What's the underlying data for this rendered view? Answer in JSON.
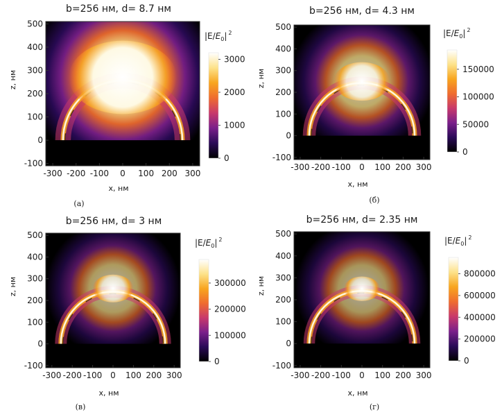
{
  "figure": {
    "colormap": [
      "#000000",
      "#2a0a57",
      "#7a1f8a",
      "#c8396b",
      "#ef6c2f",
      "#f8a51f",
      "#fde28a",
      "#ffffff"
    ],
    "substrate_color": "#000000"
  },
  "chart_data": [
    {
      "type": "heatmap",
      "title": "b=256 нм, d= 8.7 нм",
      "caption": "(а)",
      "xlabel": "x, нм",
      "ylabel": "z, нм",
      "xlim": [
        -330,
        330
      ],
      "ylim": [
        -110,
        510
      ],
      "xticks": [
        -300,
        -200,
        -100,
        0,
        100,
        200,
        300
      ],
      "xtick_labels": [
        "-300",
        "-200",
        "-100",
        "0",
        "100",
        "200",
        "300"
      ],
      "yticks": [
        -100,
        0,
        100,
        200,
        300,
        400,
        500
      ],
      "ytick_labels": [
        "-100",
        "0",
        "100",
        "200",
        "300",
        "400",
        "500"
      ],
      "colorbar": {
        "label_prefix": "|E/",
        "label_symbol": "E",
        "label_sub": "0",
        "label_suffix": "|",
        "label_sup": "2",
        "range": [
          0,
          3200
        ],
        "ticks": [
          0,
          1000,
          2000,
          3000
        ],
        "tick_labels": [
          "0",
          "1000",
          "2000",
          "3000"
        ]
      },
      "field": {
        "core_radius": 185,
        "core_center_z": 270,
        "ring_radius": 256,
        "glow": 0.95,
        "halo": 0.85
      }
    },
    {
      "type": "heatmap",
      "title": "b=256 нм, d= 4.3 нм",
      "caption": "(б)",
      "xlabel": "x, нм",
      "ylabel": "z, нм",
      "xlim": [
        -330,
        330
      ],
      "ylim": [
        -110,
        510
      ],
      "xticks": [
        -300,
        -200,
        -100,
        0,
        100,
        200,
        300
      ],
      "xtick_labels": [
        "-300",
        "-200",
        "-100",
        "0",
        "100",
        "200",
        "300"
      ],
      "yticks": [
        -100,
        0,
        100,
        200,
        300,
        400,
        500
      ],
      "ytick_labels": [
        "-100",
        "0",
        "100",
        "200",
        "300",
        "400",
        "500"
      ],
      "colorbar": {
        "label_prefix": "|E/",
        "label_symbol": "E",
        "label_sub": "0",
        "label_suffix": "|",
        "label_sup": "2",
        "range": [
          0,
          185000
        ],
        "ticks": [
          0,
          50000,
          100000,
          150000
        ],
        "tick_labels": [
          "0",
          "50000",
          "100000",
          "150000"
        ]
      },
      "field": {
        "core_radius": 110,
        "core_center_z": 250,
        "ring_radius": 256,
        "glow": 0.8,
        "halo": 0.45
      }
    },
    {
      "type": "heatmap",
      "title": "b=256 нм, d= 3 нм",
      "caption": "(в)",
      "xlabel": "x, нм",
      "ylabel": "z, нм",
      "xlim": [
        -330,
        330
      ],
      "ylim": [
        -110,
        510
      ],
      "xticks": [
        -300,
        -200,
        -100,
        0,
        100,
        200,
        300
      ],
      "xtick_labels": [
        "-300",
        "-200",
        "-100",
        "0",
        "100",
        "200",
        "300"
      ],
      "yticks": [
        -100,
        0,
        100,
        200,
        300,
        400,
        500
      ],
      "ytick_labels": [
        "-100",
        "0",
        "100",
        "200",
        "300",
        "400",
        "500"
      ],
      "colorbar": {
        "label_prefix": "|E/",
        "label_symbol": "E",
        "label_sub": "0",
        "label_suffix": "|",
        "label_sup": "2",
        "range": [
          0,
          390000
        ],
        "ticks": [
          0,
          100000,
          200000,
          300000
        ],
        "tick_labels": [
          "0",
          "100000",
          "200000",
          "300000"
        ]
      },
      "field": {
        "core_radius": 80,
        "core_center_z": 255,
        "ring_radius": 256,
        "glow": 0.7,
        "halo": 0.3
      }
    },
    {
      "type": "heatmap",
      "title": "b=256 нм, d= 2.35 нм",
      "caption": "(г)",
      "xlabel": "x, нм",
      "ylabel": "z, нм",
      "xlim": [
        -330,
        330
      ],
      "ylim": [
        -110,
        510
      ],
      "xticks": [
        -300,
        -200,
        -100,
        0,
        100,
        200,
        300
      ],
      "xtick_labels": [
        "-300",
        "-200",
        "-100",
        "0",
        "100",
        "200",
        "300"
      ],
      "yticks": [
        -100,
        0,
        100,
        200,
        300,
        400,
        500
      ],
      "ytick_labels": [
        "-100",
        "0",
        "100",
        "200",
        "300",
        "400",
        "500"
      ],
      "colorbar": {
        "label_prefix": "|E/",
        "label_symbol": "E",
        "label_sub": "0",
        "label_suffix": "|",
        "label_sup": "2",
        "range": [
          0,
          950000
        ],
        "ticks": [
          0,
          200000,
          400000,
          600000,
          800000
        ],
        "tick_labels": [
          "0",
          "200000",
          "400000",
          "600000",
          "800000"
        ]
      },
      "field": {
        "core_radius": 70,
        "core_center_z": 250,
        "ring_radius": 256,
        "glow": 0.65,
        "halo": 0.25
      }
    }
  ]
}
